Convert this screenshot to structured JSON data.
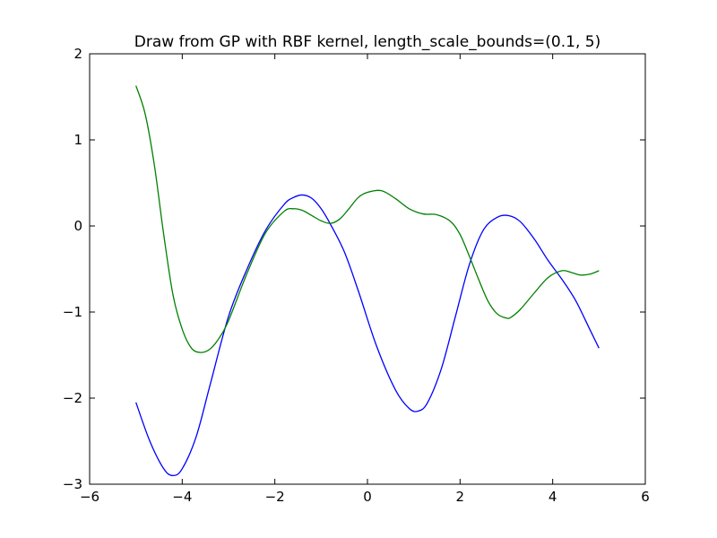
{
  "chart_data": {
    "type": "line",
    "title": "Draw from GP with RBF kernel, length_scale_bounds=(0.1, 5)",
    "xlabel": "",
    "ylabel": "",
    "xlim": [
      -6,
      6
    ],
    "ylim": [
      -3,
      2
    ],
    "xticks": [
      -6,
      -4,
      -2,
      0,
      2,
      4,
      6
    ],
    "yticks": [
      -3,
      -2,
      -1,
      0,
      1,
      2
    ],
    "grid": false,
    "series": [
      {
        "name": "sample 1",
        "color": "#0000ff",
        "x": [
          -5.0,
          -4.7,
          -4.4,
          -4.2,
          -4.0,
          -3.7,
          -3.4,
          -3.0,
          -2.6,
          -2.2,
          -1.8,
          -1.6,
          -1.4,
          -1.2,
          -1.0,
          -0.8,
          -0.5,
          -0.2,
          0.2,
          0.6,
          0.9,
          1.1,
          1.3,
          1.6,
          1.9,
          2.2,
          2.5,
          2.8,
          3.05,
          3.3,
          3.6,
          3.9,
          4.2,
          4.5,
          4.8,
          5.0
        ],
        "y": [
          -2.05,
          -2.5,
          -2.82,
          -2.9,
          -2.82,
          -2.45,
          -1.85,
          -1.05,
          -0.5,
          -0.05,
          0.25,
          0.33,
          0.36,
          0.32,
          0.2,
          0.02,
          -0.3,
          -0.75,
          -1.4,
          -1.9,
          -2.12,
          -2.15,
          -2.05,
          -1.65,
          -1.05,
          -0.45,
          -0.05,
          0.1,
          0.12,
          0.05,
          -0.15,
          -0.4,
          -0.62,
          -0.87,
          -1.2,
          -1.42
        ]
      },
      {
        "name": "sample 2",
        "color": "#008000",
        "x": [
          -5.0,
          -4.8,
          -4.6,
          -4.4,
          -4.2,
          -4.0,
          -3.8,
          -3.6,
          -3.4,
          -3.2,
          -3.0,
          -2.6,
          -2.2,
          -1.8,
          -1.6,
          -1.4,
          -1.2,
          -1.0,
          -0.8,
          -0.6,
          -0.4,
          -0.2,
          0.0,
          0.3,
          0.6,
          0.9,
          1.2,
          1.5,
          1.8,
          2.0,
          2.2,
          2.4,
          2.6,
          2.8,
          3.0,
          3.1,
          3.3,
          3.6,
          3.9,
          4.2,
          4.4,
          4.6,
          4.8,
          5.0
        ],
        "y": [
          1.63,
          1.3,
          0.7,
          -0.1,
          -0.8,
          -1.2,
          -1.42,
          -1.47,
          -1.43,
          -1.3,
          -1.1,
          -0.55,
          -0.08,
          0.17,
          0.2,
          0.18,
          0.12,
          0.06,
          0.03,
          0.08,
          0.2,
          0.33,
          0.39,
          0.41,
          0.32,
          0.2,
          0.14,
          0.13,
          0.05,
          -0.1,
          -0.35,
          -0.62,
          -0.87,
          -1.02,
          -1.07,
          -1.06,
          -0.97,
          -0.78,
          -0.6,
          -0.52,
          -0.54,
          -0.57,
          -0.56,
          -0.52
        ]
      }
    ]
  }
}
